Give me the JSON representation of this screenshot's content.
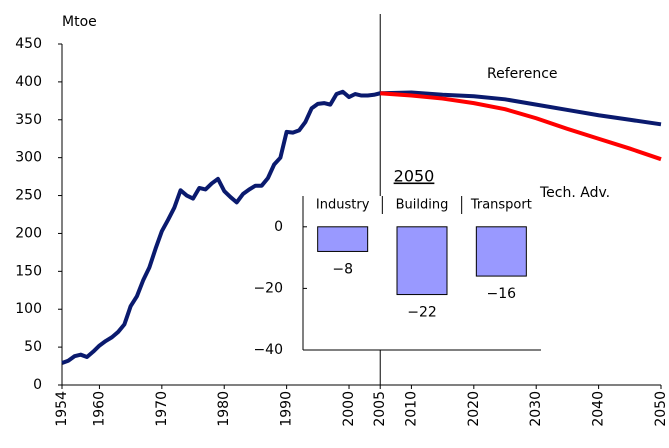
{
  "chart_data": [
    {
      "type": "line",
      "y_label": "Mtoe",
      "x": [
        1954,
        1955,
        1956,
        1957,
        1958,
        1959,
        1960,
        1961,
        1962,
        1963,
        1964,
        1965,
        1966,
        1967,
        1968,
        1969,
        1970,
        1971,
        1972,
        1973,
        1974,
        1975,
        1976,
        1977,
        1978,
        1979,
        1980,
        1981,
        1982,
        1983,
        1984,
        1985,
        1986,
        1987,
        1988,
        1989,
        1990,
        1991,
        1992,
        1993,
        1994,
        1995,
        1996,
        1997,
        1998,
        1999,
        2000,
        2001,
        2002,
        2003,
        2004,
        2005,
        2010,
        2015,
        2020,
        2025,
        2030,
        2035,
        2040,
        2045,
        2050
      ],
      "series": [
        {
          "name": "Reference",
          "color": "#0a1a6e",
          "values": [
            29,
            32,
            38,
            40,
            37,
            44,
            52,
            58,
            63,
            70,
            80,
            104,
            117,
            138,
            155,
            180,
            203,
            218,
            234,
            257,
            250,
            246,
            260,
            258,
            266,
            272,
            256,
            248,
            241,
            252,
            258,
            263,
            263,
            273,
            291,
            300,
            334,
            333,
            336,
            347,
            365,
            371,
            372,
            370,
            384,
            387,
            380,
            384,
            382,
            382,
            383,
            385,
            386,
            383,
            381,
            377,
            370,
            363,
            356,
            350,
            344
          ]
        },
        {
          "name": "Tech. Adv.",
          "color": "#ff0000",
          "values": [
            null,
            null,
            null,
            null,
            null,
            null,
            null,
            null,
            null,
            null,
            null,
            null,
            null,
            null,
            null,
            null,
            null,
            null,
            null,
            null,
            null,
            null,
            null,
            null,
            null,
            null,
            null,
            null,
            null,
            null,
            null,
            null,
            null,
            null,
            null,
            null,
            null,
            null,
            null,
            null,
            null,
            null,
            null,
            null,
            null,
            null,
            null,
            null,
            null,
            null,
            null,
            385,
            382,
            378,
            372,
            364,
            352,
            338,
            325,
            312,
            298
          ]
        }
      ],
      "xlim": [
        1954,
        2050
      ],
      "xticks": [
        1954,
        1960,
        1970,
        1980,
        1990,
        2000,
        2005,
        2010,
        2020,
        2030,
        2040,
        2050
      ],
      "ylim": [
        0,
        450
      ],
      "yticks": [
        0,
        50,
        100,
        150,
        200,
        250,
        300,
        350,
        400,
        450
      ]
    },
    {
      "type": "bar",
      "title": "2050",
      "categories": [
        "Industry",
        "Building",
        "Transport"
      ],
      "values": [
        -8,
        -22,
        -16
      ],
      "value_labels": [
        "−8",
        "−22",
        "−16"
      ],
      "color": "#9999ff",
      "ylim": [
        -40,
        10
      ],
      "yticks": [
        0,
        {
          "value": -20,
          "label": "−20"
        },
        {
          "value": -40,
          "label": "−40"
        }
      ]
    }
  ]
}
